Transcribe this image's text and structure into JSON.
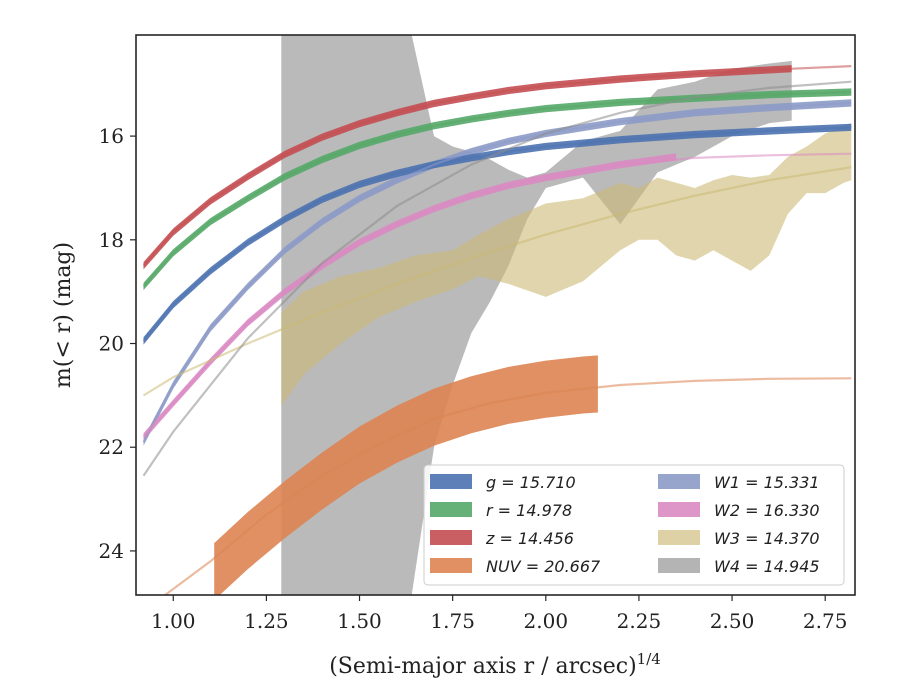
{
  "chart_data": {
    "type": "line",
    "xlabel": "(Semi-major axis r / arcsec)",
    "xlabel_sup": "1/4",
    "ylabel": "m(< r) (mag)",
    "xlim": [
      0.9,
      2.83
    ],
    "ylim": [
      24.85,
      14.05
    ],
    "x_ticks": [
      1.0,
      1.25,
      1.5,
      1.75,
      2.0,
      2.25,
      2.5,
      2.75
    ],
    "x_tick_labels": [
      "1.00",
      "1.25",
      "1.50",
      "1.75",
      "2.00",
      "2.25",
      "2.50",
      "2.75"
    ],
    "y_ticks": [
      16,
      18,
      20,
      22,
      24
    ],
    "y_tick_labels": [
      "16",
      "18",
      "20",
      "22",
      "24"
    ],
    "grid": false,
    "legend_position": "bottom-right",
    "series": [
      {
        "name": "g = 15.710",
        "color": "#4c72b0",
        "band_width": 0.07,
        "model_x": [
          0.92,
          1.0,
          1.1,
          1.2,
          1.3,
          1.4,
          1.5,
          1.6,
          1.7,
          1.8,
          1.9,
          2.0,
          2.2,
          2.4,
          2.6,
          2.82
        ],
        "model_y": [
          19.95,
          19.25,
          18.6,
          18.05,
          17.6,
          17.22,
          16.93,
          16.72,
          16.55,
          16.42,
          16.3,
          16.2,
          16.07,
          15.97,
          15.9,
          15.83
        ],
        "data_x": [
          0.92,
          1.0,
          1.1,
          1.2,
          1.3,
          1.4,
          1.5,
          1.6,
          1.7,
          1.8,
          1.9,
          2.0,
          2.2,
          2.4,
          2.6,
          2.82
        ],
        "data_y": [
          19.95,
          19.25,
          18.6,
          18.05,
          17.6,
          17.22,
          16.93,
          16.72,
          16.55,
          16.42,
          16.3,
          16.2,
          16.07,
          15.97,
          15.9,
          15.83
        ]
      },
      {
        "name": "r = 14.978",
        "color": "#55a868",
        "band_width": 0.07,
        "model_x": [
          0.92,
          1.0,
          1.1,
          1.2,
          1.3,
          1.4,
          1.5,
          1.6,
          1.7,
          1.8,
          1.9,
          2.0,
          2.2,
          2.4,
          2.6,
          2.82
        ],
        "model_y": [
          18.9,
          18.25,
          17.65,
          17.2,
          16.78,
          16.45,
          16.18,
          15.97,
          15.8,
          15.67,
          15.56,
          15.47,
          15.35,
          15.27,
          15.2,
          15.15
        ],
        "data_x": [
          0.92,
          1.0,
          1.1,
          1.2,
          1.3,
          1.4,
          1.5,
          1.6,
          1.7,
          1.8,
          1.9,
          2.0,
          2.2,
          2.4,
          2.6,
          2.82
        ],
        "data_y": [
          18.9,
          18.25,
          17.65,
          17.2,
          16.78,
          16.45,
          16.18,
          15.97,
          15.8,
          15.67,
          15.56,
          15.47,
          15.35,
          15.27,
          15.2,
          15.15
        ]
      },
      {
        "name": "z = 14.456",
        "color": "#c44e52",
        "band_width": 0.07,
        "model_x": [
          0.92,
          1.0,
          1.1,
          1.2,
          1.3,
          1.4,
          1.5,
          1.6,
          1.7,
          1.8,
          1.9,
          2.0,
          2.2,
          2.4,
          2.6,
          2.82
        ],
        "model_y": [
          18.5,
          17.85,
          17.25,
          16.78,
          16.35,
          16.02,
          15.76,
          15.55,
          15.37,
          15.24,
          15.12,
          15.03,
          14.9,
          14.8,
          14.72,
          14.65
        ],
        "data_x": [
          0.92,
          1.0,
          1.1,
          1.2,
          1.3,
          1.4,
          1.5,
          1.6,
          1.7,
          1.8,
          1.9,
          2.0,
          2.2,
          2.4,
          2.66
        ],
        "data_y": [
          18.5,
          17.85,
          17.25,
          16.78,
          16.35,
          16.02,
          15.76,
          15.55,
          15.37,
          15.24,
          15.12,
          15.03,
          14.9,
          14.8,
          14.7
        ]
      },
      {
        "name": "NUV = 20.667",
        "color": "#dd8452",
        "band_width": 0.55,
        "model_x": [
          0.95,
          1.1,
          1.25,
          1.4,
          1.55,
          1.7,
          1.85,
          2.0,
          2.2,
          2.4,
          2.6,
          2.82
        ],
        "model_y": [
          25.0,
          24.2,
          23.3,
          22.55,
          21.95,
          21.45,
          21.15,
          20.95,
          20.8,
          20.72,
          20.68,
          20.67
        ],
        "data_x": [
          1.11,
          1.2,
          1.3,
          1.4,
          1.5,
          1.6,
          1.7,
          1.8,
          1.9,
          2.0,
          2.1,
          2.14
        ],
        "data_y": [
          24.4,
          23.8,
          23.2,
          22.65,
          22.15,
          21.75,
          21.42,
          21.18,
          21.0,
          20.88,
          20.8,
          20.78
        ]
      },
      {
        "name": "W1 = 15.331",
        "color": "#8c9bc8",
        "band_width": 0.07,
        "model_x": [
          0.92,
          1.0,
          1.1,
          1.2,
          1.3,
          1.4,
          1.5,
          1.6,
          1.7,
          1.8,
          1.9,
          2.0,
          2.2,
          2.4,
          2.6,
          2.82
        ],
        "model_y": [
          21.9,
          20.8,
          19.7,
          18.9,
          18.2,
          17.65,
          17.2,
          16.85,
          16.55,
          16.3,
          16.1,
          15.95,
          15.72,
          15.55,
          15.45,
          15.36
        ],
        "data_x": [
          0.92,
          1.0,
          1.1,
          1.2,
          1.3,
          1.4,
          1.5,
          1.6,
          1.7,
          1.8,
          1.9,
          2.0,
          2.2,
          2.4,
          2.6,
          2.82
        ],
        "data_y": [
          21.9,
          20.8,
          19.7,
          18.9,
          18.2,
          17.65,
          17.2,
          16.85,
          16.55,
          16.3,
          16.1,
          15.95,
          15.72,
          15.55,
          15.45,
          15.36
        ]
      },
      {
        "name": "W2 = 16.330",
        "color": "#da8bc3",
        "band_width": 0.07,
        "model_x": [
          0.92,
          1.0,
          1.1,
          1.2,
          1.3,
          1.4,
          1.5,
          1.6,
          1.7,
          1.8,
          1.9,
          2.0,
          2.2,
          2.4,
          2.6,
          2.82
        ],
        "model_y": [
          21.8,
          21.15,
          20.35,
          19.6,
          19.0,
          18.5,
          18.05,
          17.7,
          17.4,
          17.15,
          16.95,
          16.8,
          16.55,
          16.42,
          16.37,
          16.34
        ],
        "data_x": [
          0.92,
          1.0,
          1.1,
          1.2,
          1.3,
          1.4,
          1.5,
          1.6,
          1.7,
          1.8,
          1.9,
          2.0,
          2.2,
          2.35
        ],
        "data_y": [
          21.8,
          21.15,
          20.35,
          19.6,
          19.0,
          18.5,
          18.05,
          17.7,
          17.4,
          17.15,
          16.95,
          16.8,
          16.55,
          16.4
        ]
      },
      {
        "name": "W3 = 14.370",
        "color": "#ccb974",
        "band_width": 0.07,
        "model_x": [
          0.92,
          1.0,
          1.2,
          1.4,
          1.6,
          1.8,
          2.0,
          2.2,
          2.4,
          2.6,
          2.82
        ],
        "model_y": [
          21.0,
          20.65,
          20.0,
          19.4,
          18.85,
          18.35,
          17.9,
          17.5,
          17.15,
          16.85,
          16.6
        ],
        "data_x": [
          1.29,
          1.35,
          1.45,
          1.55,
          1.65,
          1.75,
          1.82,
          1.9,
          2.0,
          2.1,
          2.2,
          2.25,
          2.3,
          2.35,
          2.4,
          2.45,
          2.5,
          2.55,
          2.6,
          2.65,
          2.7,
          2.75,
          2.8,
          2.82
        ],
        "data_y": [
          19.8,
          19.5,
          19.2,
          18.9,
          18.7,
          18.6,
          18.35,
          18.0,
          17.7,
          17.55,
          17.3,
          17.45,
          17.1,
          17.25,
          17.45,
          17.6,
          17.4,
          17.55,
          17.6,
          17.3,
          17.0,
          16.6,
          16.3,
          16.2
        ],
        "data_lo": [
          21.2,
          20.6,
          20.0,
          19.5,
          19.2,
          18.95,
          18.7,
          18.85,
          19.1,
          18.8,
          18.2,
          18.0,
          18.0,
          18.3,
          18.4,
          18.2,
          18.4,
          18.6,
          18.3,
          17.5,
          17.1,
          17.1,
          16.9,
          16.85
        ],
        "data_hi": [
          19.4,
          19.0,
          18.7,
          18.55,
          18.3,
          18.2,
          17.9,
          17.6,
          17.3,
          17.2,
          16.9,
          17.0,
          16.8,
          16.9,
          17.0,
          16.85,
          16.75,
          16.8,
          16.75,
          16.4,
          16.2,
          15.95,
          15.8,
          15.75
        ]
      },
      {
        "name": "W4 = 14.945",
        "color": "#8c8c8c",
        "band_width": 0.07,
        "model_x": [
          0.92,
          1.0,
          1.2,
          1.4,
          1.6,
          1.8,
          2.0,
          2.2,
          2.4,
          2.6,
          2.82
        ],
        "model_y": [
          22.55,
          21.7,
          19.9,
          18.45,
          17.35,
          16.55,
          15.95,
          15.55,
          15.25,
          15.07,
          14.95
        ],
        "data_x": [
          1.29,
          1.35,
          1.45,
          1.55,
          1.64,
          1.7,
          1.75,
          1.8,
          1.85,
          1.9,
          1.95,
          2.0,
          2.1,
          2.2,
          2.3,
          2.4,
          2.5,
          2.6,
          2.66
        ],
        "data_y": [
          19.5,
          18.0,
          15.5,
          14.0,
          15.5,
          17.9,
          19.0,
          18.6,
          18.3,
          17.8,
          17.2,
          16.8,
          16.5,
          16.8,
          16.0,
          15.7,
          15.3,
          15.2,
          15.1
        ],
        "data_lo": [
          24.85,
          24.85,
          24.85,
          24.85,
          24.85,
          22.0,
          20.8,
          19.8,
          19.2,
          18.5,
          17.6,
          17.0,
          16.8,
          17.7,
          16.7,
          16.4,
          16.0,
          15.75,
          15.7
        ],
        "data_hi": [
          14.05,
          14.05,
          14.05,
          14.05,
          14.05,
          16.0,
          16.2,
          16.3,
          16.45,
          16.65,
          16.8,
          16.7,
          16.1,
          15.9,
          15.1,
          14.95,
          14.7,
          14.6,
          14.55
        ]
      }
    ]
  }
}
